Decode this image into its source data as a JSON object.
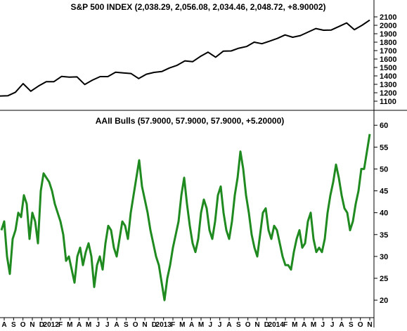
{
  "chart_data": [
    {
      "type": "line",
      "title": "S&P 500 INDEX (2,038.29, 2,056.08, 2,034.46, 2,048.72, +8.90002)",
      "ylim": [
        1050,
        2150
      ],
      "yticks": [
        1100,
        1200,
        1300,
        1400,
        1500,
        1600,
        1700,
        1800,
        1900,
        2000,
        2100
      ],
      "grid": false,
      "series": [
        {
          "color": "#000000",
          "x": [
            0,
            2,
            4,
            6,
            8,
            10,
            12,
            14,
            16,
            18,
            20,
            22,
            24,
            26,
            28,
            30,
            32,
            34,
            36,
            38,
            40,
            42,
            44,
            46,
            48,
            50,
            52,
            54,
            56,
            58,
            60,
            62,
            64,
            66,
            68,
            70,
            72,
            74,
            76,
            78,
            80,
            82
          ],
          "values": [
            1180,
            1170,
            1200,
            1290,
            1230,
            1280,
            1320,
            1350,
            1400,
            1380,
            1370,
            1310,
            1350,
            1380,
            1410,
            1450,
            1430,
            1410,
            1380,
            1420,
            1430,
            1470,
            1500,
            1520,
            1560,
            1580,
            1630,
            1670,
            1640,
            1700,
            1690,
            1710,
            1760,
            1800,
            1770,
            1830,
            1850,
            1880,
            1840,
            1890,
            1920,
            1950
          ],
          "extra": {
            "x": [
              84,
              86,
              88,
              90,
              92,
              94,
              96
            ],
            "values": [
              1960,
              1950,
              1980,
              2010,
              1960,
              2000,
              2050
            ]
          }
        }
      ]
    },
    {
      "type": "line",
      "title": "AAII Bulls (57.9000, 57.9000, 57.9000, +5.20000)",
      "ylim": [
        16,
        61
      ],
      "yticks": [
        20,
        25,
        30,
        35,
        40,
        45,
        50,
        55,
        60
      ],
      "grid": false,
      "x_tick_labels": [
        "A",
        "S",
        "O",
        "N",
        "D",
        "2012",
        "F",
        "M",
        "A",
        "M",
        "J",
        "J",
        "A",
        "S",
        "O",
        "N",
        "D",
        "2013",
        "F",
        "M",
        "A",
        "M",
        "J",
        "J",
        "A",
        "S",
        "O",
        "N",
        "D",
        "2014",
        "F",
        "M",
        "A",
        "M",
        "J",
        "J",
        "A",
        "S",
        "O",
        "N"
      ],
      "series": [
        {
          "color": "#1f8a1f",
          "values": [
            36,
            38,
            30,
            26,
            34,
            36,
            40,
            39,
            44,
            42,
            34,
            40,
            38,
            33,
            45,
            49,
            48,
            47,
            45,
            42,
            40,
            38,
            35,
            29,
            30,
            27,
            24,
            30,
            32,
            28,
            31,
            33,
            30,
            23,
            28,
            30,
            27,
            33,
            37,
            36,
            32,
            30,
            34,
            38,
            37,
            34,
            40,
            44,
            48,
            52,
            46,
            43,
            40,
            36,
            33,
            30,
            28,
            24,
            20,
            25,
            28,
            32,
            35,
            38,
            44,
            48,
            42,
            37,
            33,
            31,
            34,
            40,
            43,
            41,
            36,
            34,
            38,
            44,
            46,
            40,
            36,
            34,
            38,
            44,
            48,
            54,
            50,
            44,
            40,
            35,
            32,
            30,
            35,
            40,
            41,
            36,
            34,
            37,
            36,
            33,
            30,
            28,
            28,
            27,
            31,
            34,
            36,
            32,
            33,
            38,
            40,
            34,
            31,
            32,
            31,
            34,
            40,
            44,
            47,
            51,
            48,
            44,
            41,
            40,
            36,
            38,
            42,
            45,
            50,
            50,
            54,
            58
          ]
        }
      ]
    }
  ]
}
